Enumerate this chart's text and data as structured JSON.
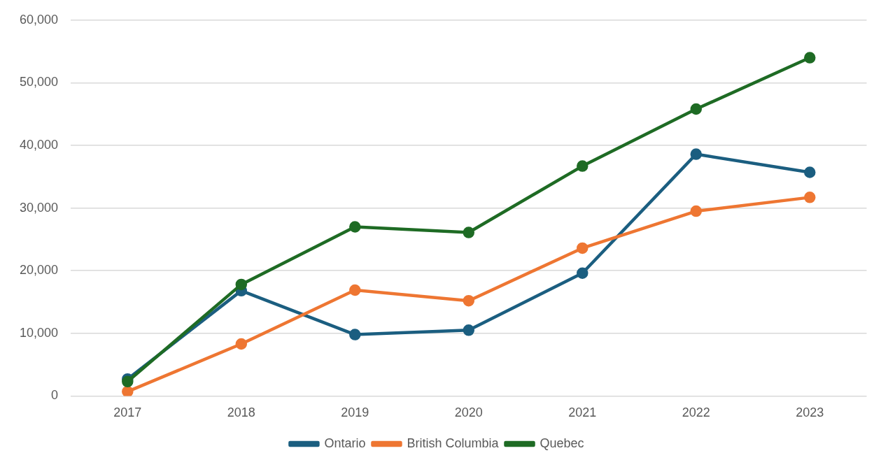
{
  "chart_data": {
    "type": "line",
    "categories": [
      "2017",
      "2018",
      "2019",
      "2020",
      "2021",
      "2022",
      "2023"
    ],
    "series": [
      {
        "name": "Ontario",
        "color": "#1b5e80",
        "values": [
          2700,
          16800,
          9800,
          10500,
          19600,
          38600,
          35700
        ]
      },
      {
        "name": "British Columbia",
        "color": "#ee7632",
        "values": [
          700,
          8300,
          16900,
          15200,
          23600,
          29500,
          31700
        ]
      },
      {
        "name": "Quebec",
        "color": "#1e6b24",
        "values": [
          2300,
          17800,
          27000,
          26100,
          36700,
          45800,
          54000
        ]
      }
    ],
    "ylim": [
      0,
      60000
    ],
    "yticks": [
      0,
      {
        "value": 10000,
        "label": "10,000"
      },
      {
        "value": 20000,
        "label": "20,000"
      },
      {
        "value": 30000,
        "label": "30,000"
      },
      {
        "value": 40000,
        "label": "40,000"
      },
      {
        "value": 50000,
        "label": "50,000"
      },
      {
        "value": 60000,
        "label": "60,000"
      }
    ],
    "grid": "y",
    "legend": "bottom",
    "marker": "circle",
    "line_style": "solid"
  }
}
